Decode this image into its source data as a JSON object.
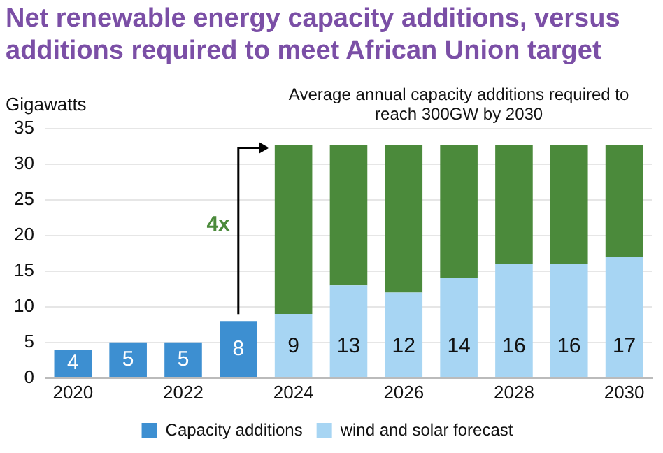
{
  "chart_data": {
    "type": "bar",
    "title": "Net renewable energy capacity additions, versus additions required to meet African Union target",
    "ylabel": "Gigawatts",
    "categories": [
      "2020",
      null,
      "2022",
      null,
      "2024",
      null,
      "2026",
      null,
      "2028",
      null,
      "2030"
    ],
    "series": [
      {
        "name": "Capacity additions",
        "color": "#3d8fd1",
        "values": [
          4,
          5,
          5,
          8,
          null,
          null,
          null,
          null,
          null,
          null,
          null
        ],
        "value_labels": [
          "4",
          "5",
          "5",
          "8",
          null,
          null,
          null,
          null,
          null,
          null,
          null
        ]
      },
      {
        "name": "wind and solar forecast",
        "color": "#a7d5f3",
        "values": [
          null,
          null,
          null,
          null,
          9,
          13,
          12,
          14,
          16,
          16,
          17
        ],
        "value_labels": [
          null,
          null,
          null,
          null,
          "9",
          "13",
          "12",
          "14",
          "16",
          "16",
          "17"
        ]
      },
      {
        "color": "#4b8a3b",
        "values": [
          null,
          null,
          null,
          null,
          23.7,
          19.7,
          20.7,
          18.7,
          16.7,
          16.7,
          15.7
        ]
      }
    ],
    "stacked": true,
    "ylim": [
      0,
      35
    ],
    "yticks": [
      0,
      5,
      10,
      15,
      20,
      25,
      30,
      35
    ],
    "grid": "y",
    "legend": "bottom",
    "annotations": [
      "Average annual capacity additions required to reach 300GW by 2030",
      "4x"
    ]
  }
}
